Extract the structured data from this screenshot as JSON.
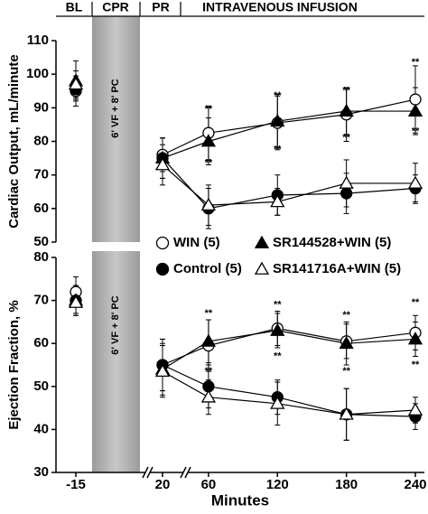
{
  "header": [
    "BL",
    "CPR",
    "PR",
    "INTRAVENOUS INFUSION"
  ],
  "band_label": "6' VF + 8' PC",
  "chart_data": [
    {
      "type": "line",
      "ylabel": "Cardiac Output, mL/minute",
      "x": [
        -15,
        20,
        60,
        120,
        180,
        240
      ],
      "xlim": [
        20,
        240
      ],
      "ylim": [
        50,
        110
      ],
      "yticks": [
        50,
        60,
        70,
        80,
        90,
        100,
        110
      ],
      "series": [
        {
          "name": "WIN (5)",
          "marker": "circle",
          "color": "#000000",
          "filled": false,
          "values": [
            95,
            76,
            82.5,
            85.5,
            88,
            92.5
          ],
          "errors": [
            4.5,
            5,
            8,
            8,
            8,
            10
          ]
        },
        {
          "name": "SR144528+WIN (5)",
          "marker": "triangle",
          "color": "#000000",
          "filled": true,
          "values": [
            98,
            75,
            80,
            86,
            89,
            89
          ],
          "errors": [
            6,
            6,
            7,
            8,
            7,
            7
          ]
        },
        {
          "name": "Control (5)",
          "marker": "circle",
          "color": "#000000",
          "filled": true,
          "values": [
            95.5,
            75,
            60,
            64,
            64.5,
            66
          ],
          "errors": [
            3,
            6,
            6,
            6,
            6,
            4
          ]
        },
        {
          "name": "SR141716A+WIN (5)",
          "marker": "triangle",
          "color": "#000000",
          "filled": false,
          "values": [
            97,
            73,
            61,
            62,
            67.5,
            67.5
          ],
          "errors": [
            4,
            6,
            6,
            4,
            7,
            6
          ]
        }
      ],
      "annotations": [
        {
          "text": "**",
          "x": 60,
          "y": 89.5
        },
        {
          "text": "**",
          "x": 60,
          "y": 73.5
        },
        {
          "text": "**",
          "x": 120,
          "y": 93.5
        },
        {
          "text": "**",
          "x": 120,
          "y": 77.5
        },
        {
          "text": "**",
          "x": 180,
          "y": 95
        },
        {
          "text": "**",
          "x": 180,
          "y": 81
        },
        {
          "text": "**",
          "x": 240,
          "y": 103.5
        },
        {
          "text": "**",
          "x": 240,
          "y": 83
        }
      ]
    },
    {
      "type": "line",
      "ylabel": "Ejection Fraction, %",
      "xlabel": "Minutes",
      "x": [
        -15,
        20,
        60,
        120,
        180,
        240
      ],
      "xlim": [
        20,
        240
      ],
      "xticks": [
        -15,
        20,
        60,
        120,
        180,
        240
      ],
      "ylim": [
        30,
        80
      ],
      "yticks": [
        30,
        40,
        50,
        60,
        70,
        80
      ],
      "series": [
        {
          "marker": "circle",
          "color": "#000000",
          "filled": false,
          "values": [
            72,
            55,
            59.5,
            63.5,
            60.5,
            62.5
          ],
          "errors": [
            3.5,
            6,
            6,
            4,
            4,
            4
          ]
        },
        {
          "marker": "triangle",
          "color": "#000000",
          "filled": true,
          "values": [
            70,
            54,
            60.5,
            63,
            60,
            61
          ],
          "errors": [
            3.5,
            6,
            5,
            4,
            5,
            4
          ]
        },
        {
          "marker": "circle",
          "color": "#000000",
          "filled": true,
          "values": [
            70,
            55,
            50,
            47.5,
            43.5,
            43
          ],
          "errors": [
            3,
            6,
            5,
            4,
            6,
            3
          ]
        },
        {
          "marker": "triangle",
          "color": "#000000",
          "filled": false,
          "values": [
            69.5,
            53.5,
            47.5,
            46,
            43.5,
            44.5
          ],
          "errors": [
            3,
            6,
            4,
            5,
            6,
            3
          ]
        }
      ],
      "annotations": [
        {
          "text": "**",
          "x": 60,
          "y": 67
        },
        {
          "text": "**",
          "x": 60,
          "y": 53.5
        },
        {
          "text": "**",
          "x": 120,
          "y": 69
        },
        {
          "text": "**",
          "x": 120,
          "y": 57
        },
        {
          "text": "**",
          "x": 180,
          "y": 66.5
        },
        {
          "text": "**",
          "x": 180,
          "y": 53.5
        },
        {
          "text": "**",
          "x": 240,
          "y": 69.5
        },
        {
          "text": "**",
          "x": 240,
          "y": 55
        }
      ]
    }
  ]
}
